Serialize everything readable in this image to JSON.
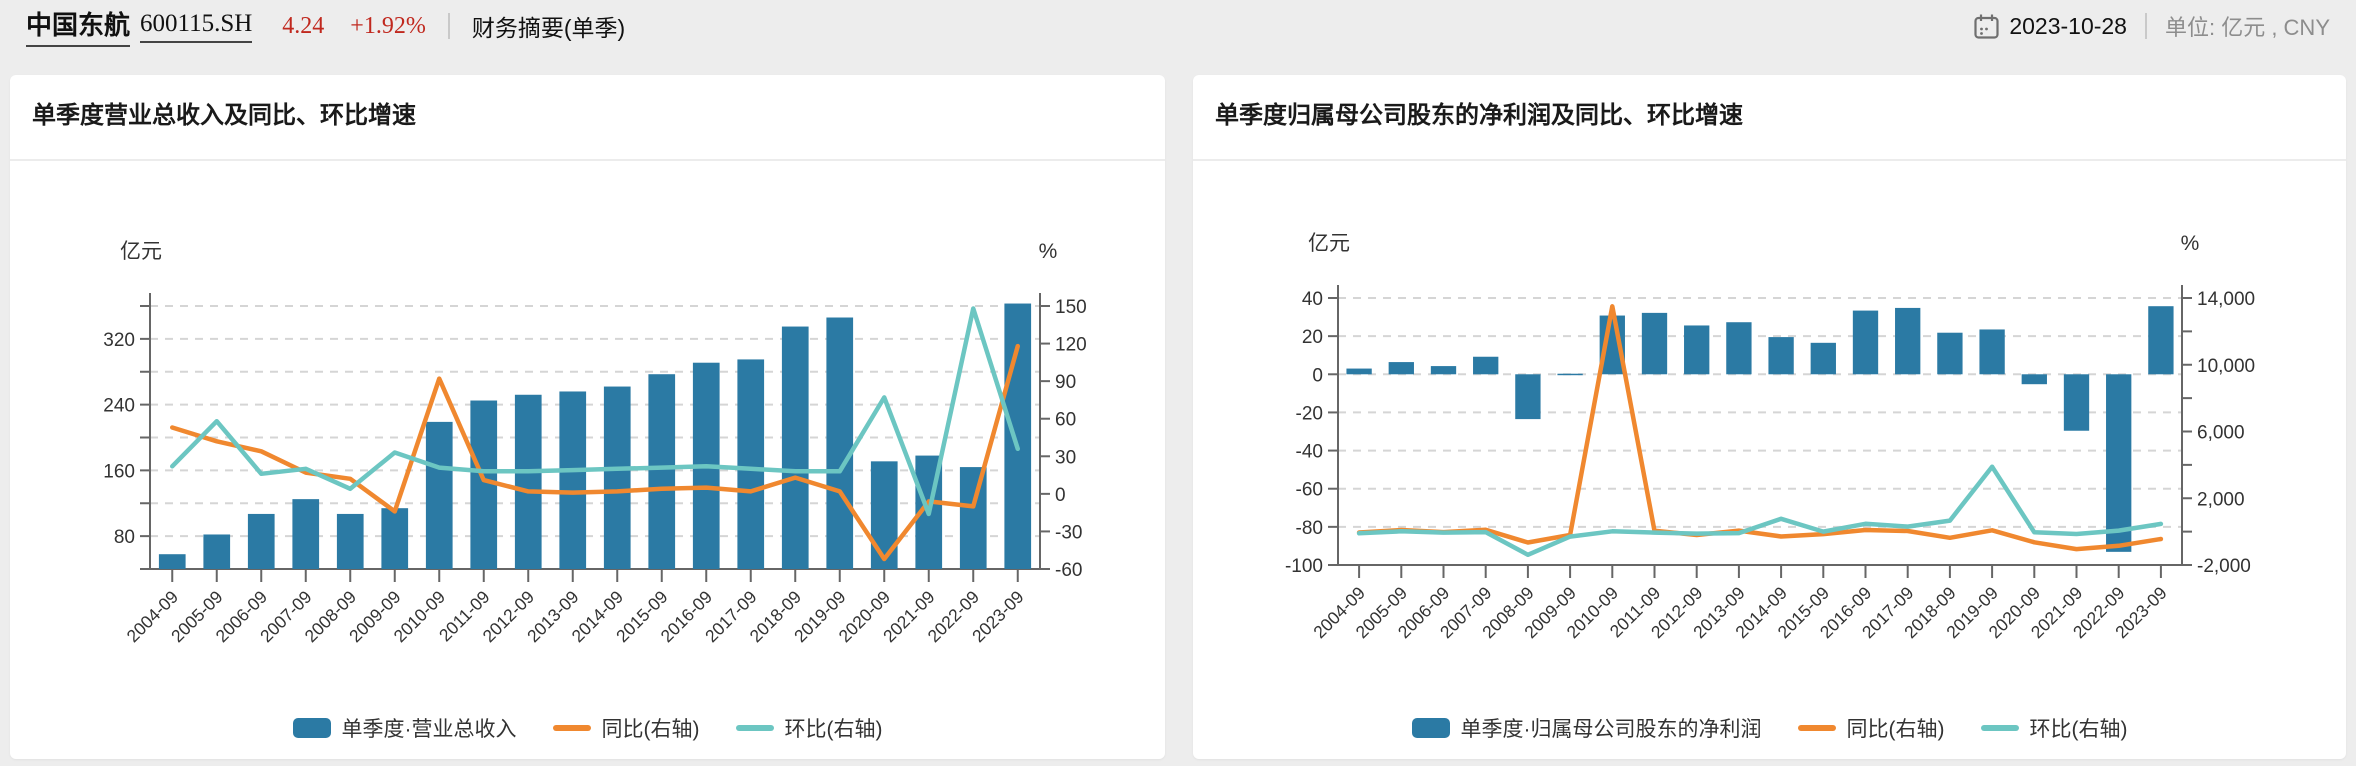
{
  "colors": {
    "bar_blue": "#2b7aa4",
    "line_orange": "#f0882f",
    "line_teal": "#6cc6c2",
    "quote_red": "#c0281e",
    "grid": "#d5d5d5",
    "axis": "#666666",
    "axis_text": "#333333"
  },
  "header": {
    "stock_name": "中国东航",
    "stock_code": "600115.SH",
    "price": "4.24",
    "change_pct": "+1.92%",
    "section_label": "财务摘要(单季)",
    "date": "2023-10-28",
    "unit_label": "单位: 亿元 , CNY"
  },
  "chart_data": [
    {
      "type": "bar",
      "combo": "bar+line",
      "title": "单季度营业总收入及同比、环比增速",
      "categories": [
        "2004-09",
        "2005-09",
        "2006-09",
        "2007-09",
        "2008-09",
        "2009-09",
        "2010-09",
        "2011-09",
        "2012-09",
        "2013-09",
        "2014-09",
        "2015-09",
        "2016-09",
        "2017-09",
        "2018-09",
        "2019-09",
        "2020-09",
        "2021-09",
        "2022-09",
        "2023-09"
      ],
      "bar_series": {
        "name": "单季度·营业总收入",
        "axis": "left",
        "unit": "亿元",
        "values": [
          58,
          82,
          107,
          125,
          107,
          114,
          219,
          245,
          252,
          256,
          262,
          277,
          291,
          295,
          335,
          346,
          171,
          178,
          164,
          363
        ]
      },
      "line_series": [
        {
          "name": "同比(右轴)",
          "axis": "right",
          "unit": "%",
          "values": [
            53,
            42,
            34,
            17,
            12,
            -14,
            92,
            11,
            2,
            1,
            2,
            4,
            5,
            2,
            13,
            2,
            -52,
            -6,
            -10,
            118
          ]
        },
        {
          "name": "环比(右轴)",
          "axis": "right",
          "unit": "%",
          "values": [
            22,
            58,
            16,
            20,
            4,
            33,
            21,
            18,
            18,
            19,
            20,
            21,
            22,
            20,
            18,
            18,
            77,
            -16,
            148,
            36
          ]
        }
      ],
      "left_axis": {
        "name": "亿元",
        "min": 40,
        "max": 360,
        "grid_step": 40,
        "labels": {
          "80": "80",
          "160": "160",
          "240": "240",
          "320": "320"
        }
      },
      "right_axis": {
        "name": "%",
        "min": -60,
        "max": 150,
        "grid_step": 30,
        "labels": {
          "-60": "-60",
          "-30": "-30",
          "0": "0",
          "30": "30",
          "60": "60",
          "90": "90",
          "120": "120",
          "150": "150"
        }
      },
      "grid": "dashed",
      "legend_position": "bottom"
    },
    {
      "type": "bar",
      "combo": "bar+line",
      "title": "单季度归属母公司股东的净利润及同比、环比增速",
      "categories": [
        "2004-09",
        "2005-09",
        "2006-09",
        "2007-09",
        "2008-09",
        "2009-09",
        "2010-09",
        "2011-09",
        "2012-09",
        "2013-09",
        "2014-09",
        "2015-09",
        "2016-09",
        "2017-09",
        "2018-09",
        "2019-09",
        "2020-09",
        "2021-09",
        "2022-09",
        "2023-09"
      ],
      "bar_series": {
        "name": "单季度·归属母公司股东的净利润",
        "axis": "left",
        "unit": "亿元",
        "values": [
          3.0,
          6.4,
          4.3,
          9.2,
          -23.5,
          0.3,
          30.8,
          32.2,
          25.6,
          27.3,
          19.5,
          16.5,
          33.4,
          34.8,
          21.8,
          23.5,
          -5.2,
          -29.6,
          -93.1,
          35.7
        ]
      },
      "line_series": [
        {
          "name": "同比(右轴)",
          "axis": "right",
          "unit": "%",
          "values": [
            -50,
            100,
            -30,
            110,
            -650,
            -200,
            13500,
            50,
            -200,
            60,
            -290,
            -150,
            100,
            40,
            -370,
            80,
            -640,
            -1050,
            -850,
            -440
          ]
        },
        {
          "name": "环比(右轴)",
          "axis": "right",
          "unit": "%",
          "values": [
            -100,
            20,
            -60,
            -30,
            -1390,
            -300,
            20,
            -60,
            -120,
            -90,
            770,
            0,
            470,
            300,
            660,
            3890,
            -40,
            -140,
            60,
            465
          ]
        }
      ],
      "left_axis": {
        "name": "亿元",
        "min": -100,
        "max": 40,
        "grid_step": 20,
        "labels": {
          "-100": "-100",
          "-80": "-80",
          "-60": "-60",
          "-40": "-40",
          "-20": "-20",
          "0": "0",
          "20": "20",
          "40": "40"
        }
      },
      "right_axis": {
        "name": "%",
        "min": -2000,
        "max": 14000,
        "grid_step": 2000,
        "labels": {
          "-2000": "-2,000",
          "2000": "2,000",
          "6000": "6,000",
          "10000": "10,000",
          "14000": "14,000"
        }
      },
      "grid": "dashed",
      "legend_position": "bottom"
    }
  ]
}
